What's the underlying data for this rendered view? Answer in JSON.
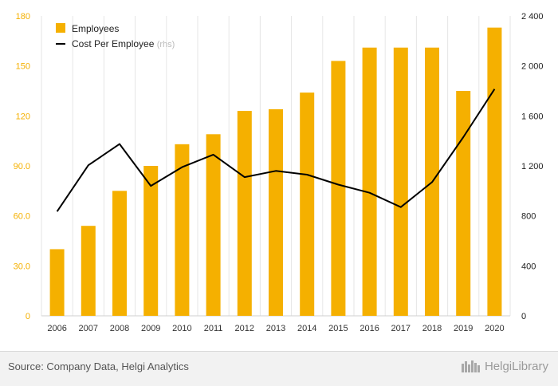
{
  "chart_data": {
    "type": "bar",
    "categories": [
      "2006",
      "2007",
      "2008",
      "2009",
      "2010",
      "2011",
      "2012",
      "2013",
      "2014",
      "2015",
      "2016",
      "2017",
      "2018",
      "2019",
      "2020"
    ],
    "series": [
      {
        "name": "Employees",
        "type": "bar",
        "axis": "left",
        "color": "#F5B000",
        "values": [
          40,
          54,
          75,
          90,
          103,
          109,
          123,
          124,
          134,
          153,
          161,
          161,
          161,
          135,
          173
        ]
      },
      {
        "name": "Cost Per Employee",
        "legend_suffix": "(rhs)",
        "type": "line",
        "axis": "right",
        "color": "#000000",
        "values": [
          835,
          1205,
          1375,
          1040,
          1190,
          1290,
          1110,
          1160,
          1130,
          1050,
          985,
          870,
          1070,
          1430,
          1815
        ]
      }
    ],
    "y_left": {
      "min": 0,
      "max": 180,
      "ticks": [
        "0",
        "30.0",
        "60.0",
        "90.0",
        "120",
        "150",
        "180"
      ],
      "tick_values": [
        0,
        30,
        60,
        90,
        120,
        150,
        180
      ],
      "color": "#F5B000"
    },
    "y_right": {
      "min": 0,
      "max": 2400,
      "ticks": [
        "0",
        "400",
        "800",
        "1 200",
        "1 600",
        "2 000",
        "2 400"
      ],
      "tick_values": [
        0,
        400,
        800,
        1200,
        1600,
        2000,
        2400
      ]
    },
    "grid": "vertical",
    "legend_position": "top-left"
  },
  "footer": {
    "source": "Source: Company Data, Helgi Analytics",
    "brand": "HelgiLibrary"
  }
}
